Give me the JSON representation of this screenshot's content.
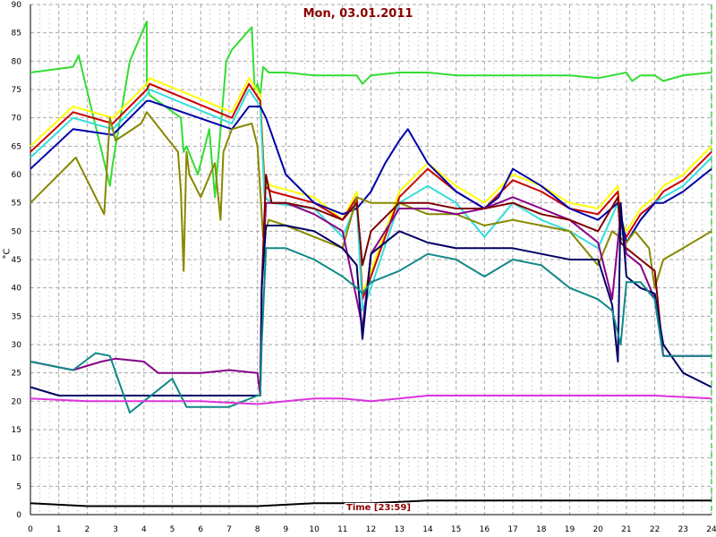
{
  "chart_data": {
    "type": "line",
    "title": "Mon, 03.01.2011",
    "xlabel": "Time [23:59]",
    "ylabel": "°C",
    "xlim": [
      0,
      24
    ],
    "ylim": [
      0,
      90
    ],
    "xticks": [
      0,
      1,
      2,
      3,
      4,
      5,
      6,
      7,
      8,
      9,
      10,
      11,
      12,
      13,
      14,
      15,
      16,
      17,
      18,
      19,
      20,
      21,
      22,
      23,
      24
    ],
    "yticks": [
      0,
      5,
      10,
      15,
      20,
      25,
      30,
      35,
      40,
      45,
      50,
      55,
      60,
      65,
      70,
      75,
      80,
      85,
      90
    ],
    "grid": true,
    "series": [
      {
        "color": "#33dd33",
        "x": [
          0,
          1.5,
          1.7,
          2.8,
          2.9,
          3.5,
          4.1,
          4.1,
          4.2,
          5.3,
          5.4,
          5.5,
          5.9,
          6.3,
          6.5,
          6.9,
          7.1,
          7.8,
          7.9,
          8.0,
          8.1,
          8.2,
          8.4,
          9,
          10,
          11,
          11.5,
          11.7,
          12,
          13,
          14,
          15,
          16,
          17,
          18,
          19,
          20,
          20.5,
          21,
          21.2,
          21.5,
          22,
          22.3,
          23,
          24
        ],
        "y": [
          78,
          79,
          81,
          58,
          62,
          80,
          87,
          76,
          74,
          70,
          64,
          65,
          60,
          68,
          56,
          80,
          82,
          86,
          75,
          76,
          74,
          79,
          78,
          78,
          77.5,
          77.5,
          77.5,
          76,
          77.5,
          78,
          78,
          77.5,
          77.5,
          77.5,
          77.5,
          77.5,
          77,
          77.5,
          78,
          76.5,
          77.5,
          77.5,
          76.5,
          77.5,
          78
        ]
      },
      {
        "color": "#ffff00",
        "x": [
          0,
          1.5,
          2.9,
          4.1,
          4.2,
          7.1,
          7.7,
          8.1,
          8.25,
          8.5,
          10,
          11,
          11.5,
          11.7,
          12,
          13,
          14,
          15,
          16,
          17,
          18,
          19,
          20,
          20.7,
          20.8,
          21,
          21.5,
          22,
          22.3,
          23,
          24
        ],
        "y": [
          65,
          72,
          70,
          76,
          77,
          71,
          77,
          74,
          59,
          58,
          56,
          52,
          57,
          39,
          43,
          57,
          62,
          58,
          55,
          60,
          58,
          55,
          54,
          58,
          52,
          50,
          54,
          56,
          58,
          60,
          65
        ]
      },
      {
        "color": "#cc0000",
        "x": [
          0,
          1.5,
          2.9,
          4.1,
          4.2,
          7.1,
          7.7,
          8.1,
          8.25,
          8.5,
          10,
          11,
          11.5,
          11.7,
          12,
          13,
          14,
          15,
          16,
          17,
          18,
          19,
          20,
          20.7,
          20.8,
          21,
          21.5,
          22,
          22.3,
          23,
          24
        ],
        "y": [
          64,
          71,
          69,
          75,
          76,
          70,
          76,
          73,
          58,
          57,
          55,
          52,
          56,
          38,
          42,
          56,
          61,
          57,
          54,
          59,
          57,
          54,
          53,
          57,
          51,
          49,
          53,
          55,
          57,
          59,
          64
        ]
      },
      {
        "color": "#33dddd",
        "x": [
          0,
          1.5,
          2.9,
          4.1,
          4.2,
          7.1,
          7.7,
          8.1,
          8.25,
          8.5,
          10,
          11,
          11.5,
          11.7,
          12,
          13,
          14,
          15,
          16,
          17,
          18,
          19,
          20,
          20.7,
          20.8,
          21,
          21.5,
          22,
          22.3,
          23,
          24
        ],
        "y": [
          63,
          70,
          68,
          74,
          75,
          69,
          75,
          72,
          56,
          55,
          54,
          49,
          55,
          36,
          40,
          55,
          58,
          55,
          49,
          55,
          52,
          50,
          47,
          55,
          50,
          48,
          52,
          55,
          56,
          58,
          63
        ]
      },
      {
        "color": "#0000aa",
        "x": [
          0,
          1.5,
          2.9,
          4.1,
          4.2,
          7.1,
          7.7,
          8.1,
          8.3,
          9,
          10,
          11,
          11.5,
          12,
          12.5,
          13,
          13.3,
          14,
          15,
          16,
          16.5,
          17,
          18,
          19,
          20,
          20.7,
          20.8,
          21,
          21.5,
          22,
          22.3,
          23,
          24
        ],
        "y": [
          61,
          68,
          67,
          73,
          73,
          68,
          72,
          72,
          70,
          60,
          55,
          53,
          54,
          57,
          62,
          66,
          68,
          62,
          57,
          54,
          56,
          61,
          58,
          54,
          52,
          55,
          53,
          48,
          52,
          55,
          55,
          57,
          61
        ]
      },
      {
        "color": "#888800",
        "x": [
          0,
          1.6,
          2.6,
          2.8,
          3.0,
          3.9,
          4.1,
          5.2,
          5.3,
          5.4,
          5.5,
          5.6,
          6.0,
          6.5,
          6.7,
          6.8,
          7.1,
          7.8,
          8.0,
          8.2,
          8.4,
          9,
          10,
          11,
          11.5,
          12,
          13,
          14,
          15,
          16,
          17,
          18,
          19,
          20,
          20.5,
          21,
          21.3,
          21.8,
          22.0,
          22.3,
          23,
          24
        ],
        "y": [
          55,
          63,
          53,
          70,
          66,
          69,
          71,
          64,
          57,
          43,
          64,
          60,
          56,
          62,
          52,
          64,
          68,
          69,
          65,
          49,
          52,
          51,
          49,
          47,
          56,
          55,
          55,
          53,
          53,
          51,
          52,
          51,
          50,
          44,
          50,
          48,
          50,
          47,
          40,
          45,
          47,
          50
        ]
      },
      {
        "color": "#880088",
        "x": [
          0,
          1.5,
          2.5,
          3.0,
          4.0,
          4.5,
          5.0,
          6,
          7,
          8,
          8.1,
          8.15,
          8.3,
          9,
          10,
          11,
          11.5,
          11.7,
          12,
          13,
          14,
          15,
          16,
          17,
          18,
          19,
          20,
          20.5,
          20.8,
          21,
          21.5,
          22,
          22.3,
          23,
          24
        ],
        "y": [
          27,
          25.5,
          27,
          27.5,
          27,
          25,
          25,
          25,
          25.5,
          25,
          21,
          40,
          55,
          55,
          53,
          50,
          38,
          33,
          46,
          54,
          54,
          53,
          54,
          56,
          54,
          52,
          48,
          38,
          53,
          46,
          44,
          38,
          28,
          28,
          28
        ]
      },
      {
        "color": "#800000",
        "x": [
          8.15,
          8.3,
          8.5,
          9,
          10,
          11,
          11.5,
          11.7,
          12,
          13,
          14,
          15,
          16,
          17,
          18,
          19,
          20,
          20.7,
          20.8,
          21,
          21.5,
          22,
          22.3
        ],
        "y": [
          40,
          60,
          55,
          55,
          54,
          52,
          55,
          44,
          50,
          55,
          55,
          54,
          54,
          55,
          53,
          52,
          50,
          56,
          48,
          47,
          45,
          43,
          28
        ]
      },
      {
        "color": "#000066",
        "x": [
          0,
          1,
          2,
          4,
          6,
          8,
          8.1,
          8.15,
          8.3,
          9,
          10,
          11,
          11.5,
          11.7,
          12,
          13,
          14,
          15,
          16,
          17,
          18,
          19,
          20,
          20.5,
          20.7,
          20.8,
          21,
          21.5,
          22,
          22.3,
          23,
          24
        ],
        "y": [
          22.5,
          21,
          21,
          21,
          21,
          21,
          21,
          40,
          51,
          51,
          50,
          47,
          44,
          31,
          46,
          50,
          48,
          47,
          47,
          47,
          46,
          45,
          45,
          37,
          27,
          55,
          42,
          40,
          39,
          30,
          25,
          22.5
        ]
      },
      {
        "color": "#118888",
        "x": [
          0,
          1.5,
          2.3,
          2.8,
          3.5,
          4,
          4.5,
          5,
          5.5,
          6,
          7,
          8,
          8.1,
          8.15,
          8.3,
          9,
          10,
          11,
          11.5,
          11.7,
          12,
          13,
          14,
          15,
          16,
          17,
          18,
          19,
          20,
          20.5,
          20.8,
          21,
          21.5,
          22,
          22.3,
          23,
          24
        ],
        "y": [
          27,
          25.5,
          28.5,
          28,
          18,
          20,
          22,
          24,
          19,
          19,
          19,
          21,
          21,
          30,
          47,
          47,
          45,
          42,
          40,
          39,
          41,
          43,
          46,
          45,
          42,
          45,
          44,
          40,
          38,
          36,
          30,
          41,
          41,
          38,
          28,
          28,
          28
        ]
      },
      {
        "color": "#dd33dd",
        "x": [
          0,
          2,
          4,
          6,
          8,
          9,
          10,
          11,
          12,
          13,
          14,
          16,
          18,
          20,
          21,
          22,
          24
        ],
        "y": [
          20.5,
          20,
          20,
          20,
          19.5,
          20,
          20.5,
          20.5,
          20,
          20.5,
          21,
          21,
          21,
          21,
          21,
          21,
          20.5
        ]
      },
      {
        "color": "#000000",
        "x": [
          0,
          2,
          4,
          6,
          8,
          10,
          12,
          14,
          16,
          18,
          20,
          22,
          24
        ],
        "y": [
          2,
          1.5,
          1.5,
          1.5,
          1.5,
          2,
          2,
          2.5,
          2.5,
          2.5,
          2.5,
          2.5,
          2.5
        ]
      }
    ]
  }
}
